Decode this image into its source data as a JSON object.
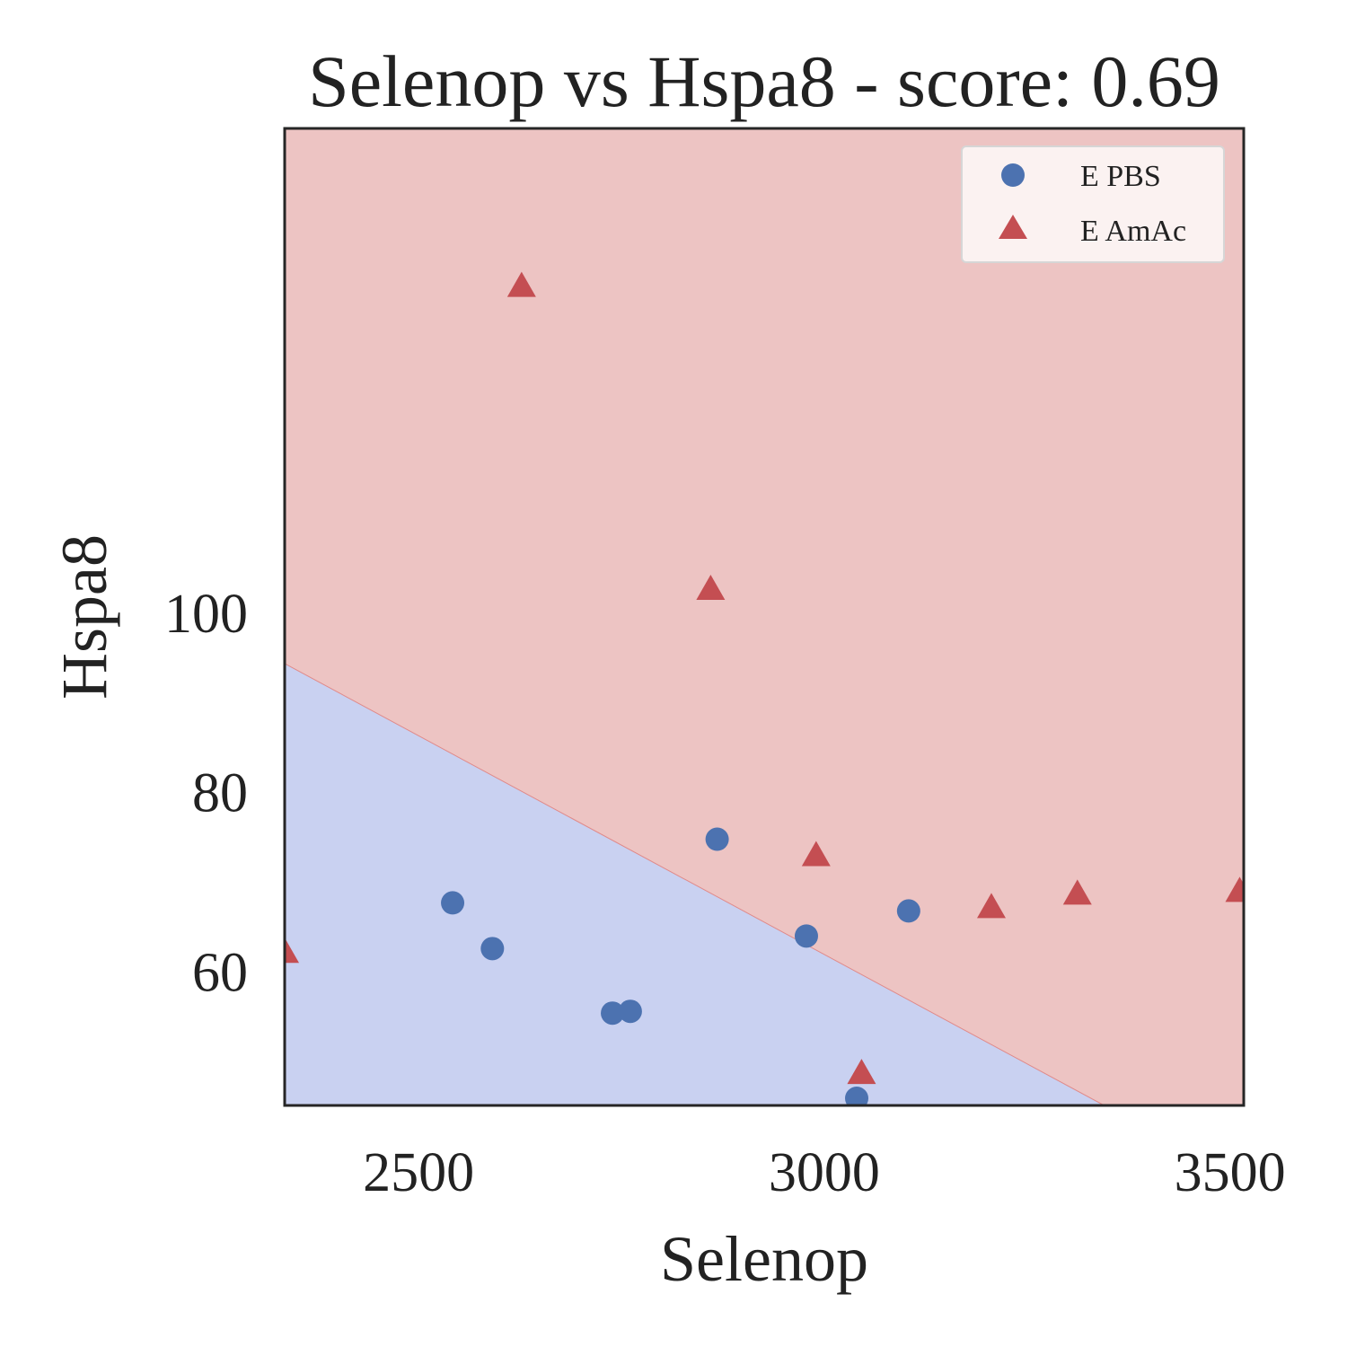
{
  "chart_data": {
    "type": "scatter",
    "title": "Selenop vs Hspa8 - score: 0.69",
    "xlabel": "Selenop",
    "ylabel": "Hspa8",
    "xlim": [
      2335,
      3517
    ],
    "ylim": [
      45,
      154
    ],
    "xticks": [
      2500,
      3000,
      3500
    ],
    "xtick_labels": [
      "2500",
      "3000",
      "3500"
    ],
    "yticks": [
      60,
      80,
      100
    ],
    "ytick_labels": [
      "60",
      "80",
      "100"
    ],
    "grid": false,
    "legend_position": "top-right",
    "decision_boundary": {
      "line": [
        [
          2335,
          94.3
        ],
        [
          3345,
          45
        ]
      ],
      "lower_region_color": "#c9d1f1",
      "upper_region_color": "#edc4c3",
      "boundary_color": "#e08a8a"
    },
    "series": [
      {
        "name": "E PBS",
        "marker": "circle",
        "color": "#4c72b0",
        "points": [
          [
            2542,
            67.6
          ],
          [
            2591,
            62.5
          ],
          [
            2739,
            55.3
          ],
          [
            2761,
            55.5
          ],
          [
            2868,
            74.7
          ],
          [
            2978,
            63.9
          ],
          [
            3040,
            45.8
          ],
          [
            3104,
            66.7
          ]
        ]
      },
      {
        "name": "E AmAc",
        "marker": "triangle",
        "color": "#c44e52",
        "points": [
          [
            2335,
            62.0
          ],
          [
            2627,
            136.3
          ],
          [
            2860,
            102.5
          ],
          [
            2990,
            72.8
          ],
          [
            3046,
            48.5
          ],
          [
            3206,
            67.0
          ],
          [
            3312,
            68.5
          ],
          [
            3512,
            68.8
          ]
        ]
      }
    ]
  }
}
